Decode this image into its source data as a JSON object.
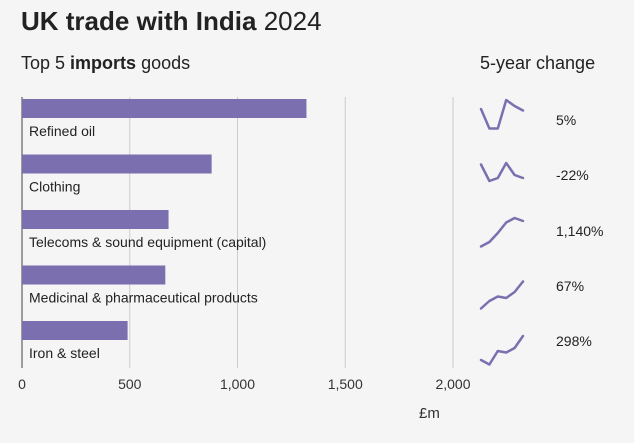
{
  "title": {
    "bold": "UK trade with India",
    "rest": " 2024"
  },
  "subtitle": {
    "before": "Top 5 ",
    "bold": "imports",
    "after": " goods"
  },
  "change_heading": "5-year change",
  "unit_label": "£m",
  "colors": {
    "bar": "#7b6fb0",
    "grid": "#cccccc",
    "text": "#222222",
    "background": "#f5f5f5"
  },
  "chart_data": {
    "type": "bar",
    "orientation": "horizontal",
    "categories": [
      "Refined oil",
      "Clothing",
      "Telecoms & sound equipment (capital)",
      "Medicinal & pharmaceutical products",
      "Iron & steel"
    ],
    "values": [
      1320,
      880,
      680,
      665,
      490
    ],
    "xlim": [
      0,
      2000
    ],
    "xticks": [
      0,
      500,
      1000,
      1500,
      2000
    ],
    "xtick_labels": [
      "0",
      "500",
      "1,000",
      "1,500",
      "2,000"
    ],
    "grid": true,
    "five_year_change": [
      "5%",
      "-22%",
      "1,140%",
      "67%",
      "298%"
    ],
    "sparklines": [
      [
        0.7,
        0.05,
        0.05,
        1.0,
        0.8,
        0.65
      ],
      [
        0.75,
        0.2,
        0.3,
        0.8,
        0.4,
        0.3
      ],
      [
        0.05,
        0.2,
        0.5,
        0.85,
        1.0,
        0.9
      ],
      [
        0.05,
        0.3,
        0.45,
        0.4,
        0.6,
        0.95
      ],
      [
        0.2,
        0.05,
        0.5,
        0.45,
        0.6,
        1.0
      ]
    ]
  }
}
